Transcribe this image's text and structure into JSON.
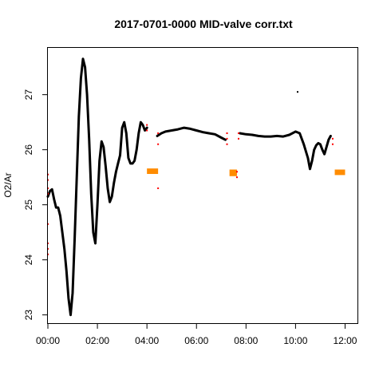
{
  "chart_data": {
    "type": "scatter",
    "title": "2017-0701-0000 MID-valve corr.txt",
    "xlabel": "",
    "ylabel": "O2/Ar",
    "xlim": [
      "00:00",
      "12:30"
    ],
    "ylim": [
      22.85,
      27.85
    ],
    "x_ticks": [
      "00:00",
      "02:00",
      "04:00",
      "06:00",
      "08:00",
      "10:00",
      "12:00"
    ],
    "y_ticks": [
      23,
      24,
      25,
      26,
      27
    ],
    "grid": false,
    "legend": "none",
    "series": [
      {
        "color": "#000000",
        "line": [
          [
            "00:00",
            25.15
          ],
          [
            "00:05",
            25.25
          ],
          [
            "00:10",
            25.28
          ],
          [
            "00:15",
            25.1
          ],
          [
            "00:20",
            24.95
          ],
          [
            "00:25",
            24.95
          ],
          [
            "00:30",
            24.8
          ],
          [
            "00:35",
            24.5
          ],
          [
            "00:40",
            24.2
          ],
          [
            "00:45",
            23.8
          ],
          [
            "00:50",
            23.3
          ],
          [
            "00:55",
            23.0
          ],
          [
            "01:00",
            23.4
          ],
          [
            "01:05",
            24.4
          ],
          [
            "01:10",
            25.5
          ],
          [
            "01:15",
            26.6
          ],
          [
            "01:20",
            27.3
          ],
          [
            "01:25",
            27.65
          ],
          [
            "01:30",
            27.5
          ],
          [
            "01:35",
            27.0
          ],
          [
            "01:40",
            26.2
          ],
          [
            "01:45",
            25.2
          ],
          [
            "01:50",
            24.5
          ],
          [
            "01:55",
            24.3
          ],
          [
            "02:00",
            25.0
          ],
          [
            "02:05",
            25.8
          ],
          [
            "02:10",
            26.15
          ],
          [
            "02:15",
            26.05
          ],
          [
            "02:20",
            25.7
          ],
          [
            "02:25",
            25.3
          ],
          [
            "02:30",
            25.05
          ],
          [
            "02:35",
            25.15
          ],
          [
            "02:40",
            25.4
          ],
          [
            "02:45",
            25.6
          ],
          [
            "02:50",
            25.75
          ],
          [
            "02:55",
            25.9
          ],
          [
            "03:00",
            26.4
          ],
          [
            "03:05",
            26.5
          ],
          [
            "03:10",
            26.3
          ],
          [
            "03:15",
            25.85
          ],
          [
            "03:20",
            25.75
          ],
          [
            "03:25",
            25.75
          ],
          [
            "03:30",
            25.8
          ],
          [
            "03:35",
            26.0
          ],
          [
            "03:40",
            26.3
          ],
          [
            "03:45",
            26.5
          ],
          [
            "03:50",
            26.45
          ],
          [
            "03:55",
            26.35
          ],
          [
            "04:00",
            26.4
          ]
        ],
        "segments": [
          [
            [
              "04:25",
              26.25
            ],
            [
              "04:35",
              26.3
            ],
            [
              "04:45",
              26.33
            ],
            [
              "05:00",
              26.35
            ],
            [
              "05:15",
              26.37
            ],
            [
              "05:30",
              26.4
            ],
            [
              "05:45",
              26.38
            ],
            [
              "06:00",
              26.35
            ],
            [
              "06:15",
              26.32
            ],
            [
              "06:30",
              26.3
            ],
            [
              "06:45",
              26.28
            ],
            [
              "07:00",
              26.22
            ],
            [
              "07:10",
              26.18
            ]
          ],
          [
            [
              "07:45",
              26.3
            ],
            [
              "08:00",
              26.28
            ],
            [
              "08:15",
              26.27
            ],
            [
              "08:30",
              26.25
            ],
            [
              "08:45",
              26.24
            ],
            [
              "09:00",
              26.24
            ],
            [
              "09:15",
              26.25
            ],
            [
              "09:30",
              26.24
            ],
            [
              "09:45",
              26.27
            ],
            [
              "10:00",
              26.33
            ],
            [
              "10:10",
              26.3
            ],
            [
              "10:20",
              26.1
            ],
            [
              "10:30",
              25.85
            ],
            [
              "10:35",
              25.65
            ],
            [
              "10:40",
              25.8
            ],
            [
              "10:45",
              26.0
            ],
            [
              "10:50",
              26.08
            ],
            [
              "10:55",
              26.12
            ],
            [
              "11:00",
              26.1
            ],
            [
              "11:05",
              26.0
            ],
            [
              "11:10",
              25.92
            ],
            [
              "11:15",
              26.05
            ],
            [
              "11:20",
              26.18
            ],
            [
              "11:25",
              26.25
            ]
          ]
        ],
        "points": [
          [
            "10:05",
            27.05
          ]
        ]
      },
      {
        "color": "#ff8c00",
        "clusters": [
          [
            "04:00",
            "04:27",
            25.56,
            25.66
          ],
          [
            "07:20",
            "07:38",
            25.52,
            25.64
          ],
          [
            "11:35",
            "12:00",
            25.54,
            25.64
          ]
        ]
      },
      {
        "color": "#ff0000",
        "points": [
          [
            "00:00",
            25.55
          ],
          [
            "00:00",
            25.45
          ],
          [
            "00:00",
            25.3
          ],
          [
            "00:00",
            25.2
          ],
          [
            "00:00",
            24.65
          ],
          [
            "00:00",
            24.3
          ],
          [
            "00:00",
            24.2
          ],
          [
            "00:00",
            24.1
          ],
          [
            "04:00",
            26.45
          ],
          [
            "04:00",
            26.35
          ],
          [
            "04:27",
            26.3
          ],
          [
            "04:27",
            26.1
          ],
          [
            "04:27",
            25.3
          ],
          [
            "07:14",
            26.3
          ],
          [
            "07:14",
            26.2
          ],
          [
            "07:14",
            26.1
          ],
          [
            "07:38",
            25.6
          ],
          [
            "07:38",
            25.5
          ],
          [
            "07:42",
            26.3
          ],
          [
            "07:42",
            26.2
          ],
          [
            "11:30",
            26.2
          ],
          [
            "11:30",
            26.1
          ]
        ]
      }
    ]
  }
}
